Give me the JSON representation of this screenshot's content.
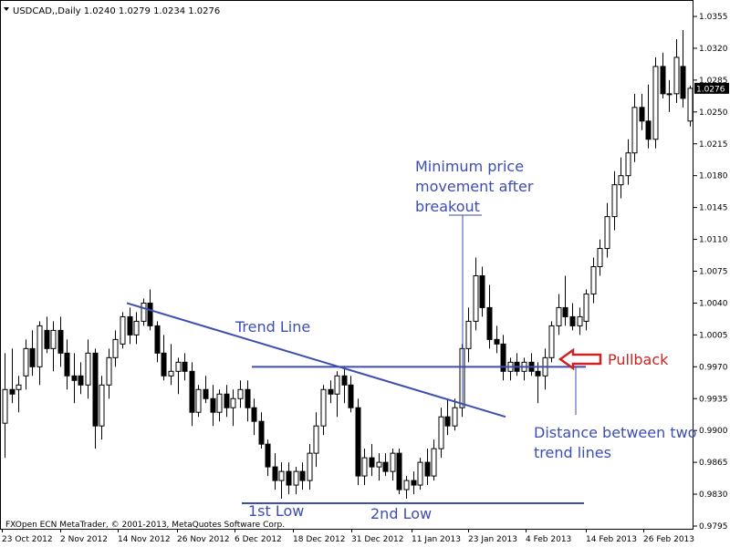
{
  "window": {
    "title": "USDCAD,,Daily  1.0240 1.0279 1.0234 1.0276",
    "copyright": "FXOpen ECN MetaTrader, © 2001-2013, MetaQuotes Software Corp."
  },
  "chart_data": {
    "type": "candlestick",
    "symbol": "USDCAD",
    "timeframe": "Daily",
    "ohlc_header": {
      "open": 1.024,
      "high": 1.0279,
      "low": 1.0234,
      "close": 1.0276
    },
    "current_price_label": "1.0276",
    "current_price": 1.0276,
    "ylim": [
      0.979,
      1.036
    ],
    "y_ticks": [
      "1.0355",
      "1.0320",
      "1.0285",
      "1.0250",
      "1.0215",
      "1.0180",
      "1.0145",
      "1.0110",
      "1.0075",
      "1.0040",
      "1.0005",
      "0.9970",
      "0.9935",
      "0.9900",
      "0.9865",
      "0.9830",
      "0.9795"
    ],
    "x_ticks": [
      "23 Oct 2012",
      "2 Nov 2012",
      "14 Nov 2012",
      "26 Nov 2012",
      "6 Dec 2012",
      "18 Dec 2012",
      "31 Dec 2012",
      "11 Jan 2013",
      "23 Jan 2013",
      "4 Feb 2013",
      "14 Feb 2013",
      "26 Feb 2013"
    ],
    "annotations": {
      "trend_line": "Trend Line",
      "min_move": [
        "Minimum price",
        "movement after",
        "breakout"
      ],
      "pullback": "Pullback",
      "distance": [
        "Distance between two",
        "trend lines"
      ],
      "first_low": "1st Low",
      "second_low": "2nd Low"
    },
    "levels": {
      "resistance": 0.997,
      "support": 0.982
    },
    "trend_line_points": [
      [
        0.004,
        16
      ],
      [
        0.9915,
        60
      ]
    ],
    "candles": [
      {
        "o": 0.9908,
        "h": 0.9985,
        "l": 0.987,
        "c": 0.9945
      },
      {
        "o": 0.9945,
        "h": 0.999,
        "l": 0.993,
        "c": 0.994
      },
      {
        "o": 0.9945,
        "h": 0.996,
        "l": 0.992,
        "c": 0.995
      },
      {
        "o": 0.996,
        "h": 1.0,
        "l": 0.9945,
        "c": 0.999
      },
      {
        "o": 0.999,
        "h": 1.001,
        "l": 0.996,
        "c": 0.997
      },
      {
        "o": 0.997,
        "h": 1.002,
        "l": 0.995,
        "c": 1.0015
      },
      {
        "o": 1.001,
        "h": 1.0025,
        "l": 0.9985,
        "c": 0.999
      },
      {
        "o": 0.999,
        "h": 1.002,
        "l": 0.9965,
        "c": 1.001
      },
      {
        "o": 1.001,
        "h": 1.0025,
        "l": 0.997,
        "c": 0.9985
      },
      {
        "o": 0.9985,
        "h": 1.0,
        "l": 0.9945,
        "c": 0.996
      },
      {
        "o": 0.996,
        "h": 0.9985,
        "l": 0.993,
        "c": 0.9955
      },
      {
        "o": 0.996,
        "h": 0.9975,
        "l": 0.994,
        "c": 0.995
      },
      {
        "o": 0.995,
        "h": 1.0,
        "l": 0.9935,
        "c": 0.9985
      },
      {
        "o": 0.9985,
        "h": 0.999,
        "l": 0.988,
        "c": 0.9905
      },
      {
        "o": 0.9905,
        "h": 0.996,
        "l": 0.989,
        "c": 0.995
      },
      {
        "o": 0.995,
        "h": 0.999,
        "l": 0.9935,
        "c": 0.998
      },
      {
        "o": 0.998,
        "h": 1.001,
        "l": 0.997,
        "c": 1.0
      },
      {
        "o": 0.9995,
        "h": 1.003,
        "l": 0.999,
        "c": 1.0025
      },
      {
        "o": 1.0025,
        "h": 1.0035,
        "l": 0.9995,
        "c": 1.0005
      },
      {
        "o": 1.0005,
        "h": 1.003,
        "l": 0.9995,
        "c": 1.002
      },
      {
        "o": 1.002,
        "h": 1.0045,
        "l": 1.0015,
        "c": 1.004
      },
      {
        "o": 1.004,
        "h": 1.0055,
        "l": 1.001,
        "c": 1.0015
      },
      {
        "o": 1.0015,
        "h": 1.002,
        "l": 0.9975,
        "c": 0.9985
      },
      {
        "o": 0.9985,
        "h": 1.0005,
        "l": 0.9955,
        "c": 0.996
      },
      {
        "o": 0.996,
        "h": 0.9995,
        "l": 0.995,
        "c": 0.9965
      },
      {
        "o": 0.9965,
        "h": 0.998,
        "l": 0.994,
        "c": 0.9975
      },
      {
        "o": 0.9975,
        "h": 0.9985,
        "l": 0.9955,
        "c": 0.9965
      },
      {
        "o": 0.9965,
        "h": 0.9975,
        "l": 0.9905,
        "c": 0.992
      },
      {
        "o": 0.992,
        "h": 0.995,
        "l": 0.9915,
        "c": 0.9945
      },
      {
        "o": 0.9945,
        "h": 0.996,
        "l": 0.993,
        "c": 0.9935
      },
      {
        "o": 0.9935,
        "h": 0.995,
        "l": 0.9905,
        "c": 0.992
      },
      {
        "o": 0.992,
        "h": 0.9945,
        "l": 0.991,
        "c": 0.994
      },
      {
        "o": 0.994,
        "h": 0.995,
        "l": 0.9915,
        "c": 0.9925
      },
      {
        "o": 0.9925,
        "h": 0.9945,
        "l": 0.9905,
        "c": 0.9935
      },
      {
        "o": 0.9935,
        "h": 0.9955,
        "l": 0.9925,
        "c": 0.9945
      },
      {
        "o": 0.9945,
        "h": 0.9955,
        "l": 0.991,
        "c": 0.9925
      },
      {
        "o": 0.9925,
        "h": 0.9935,
        "l": 0.9895,
        "c": 0.991
      },
      {
        "o": 0.991,
        "h": 0.992,
        "l": 0.988,
        "c": 0.9885
      },
      {
        "o": 0.9885,
        "h": 0.989,
        "l": 0.985,
        "c": 0.986
      },
      {
        "o": 0.986,
        "h": 0.9875,
        "l": 0.9835,
        "c": 0.9845
      },
      {
        "o": 0.9845,
        "h": 0.9865,
        "l": 0.9825,
        "c": 0.9855
      },
      {
        "o": 0.9855,
        "h": 0.9865,
        "l": 0.983,
        "c": 0.984
      },
      {
        "o": 0.984,
        "h": 0.986,
        "l": 0.983,
        "c": 0.9855
      },
      {
        "o": 0.9855,
        "h": 0.9865,
        "l": 0.9835,
        "c": 0.9845
      },
      {
        "o": 0.9845,
        "h": 0.9885,
        "l": 0.9835,
        "c": 0.9875
      },
      {
        "o": 0.9875,
        "h": 0.992,
        "l": 0.986,
        "c": 0.9905
      },
      {
        "o": 0.9905,
        "h": 0.995,
        "l": 0.9895,
        "c": 0.9945
      },
      {
        "o": 0.9945,
        "h": 0.9955,
        "l": 0.993,
        "c": 0.994
      },
      {
        "o": 0.994,
        "h": 0.9965,
        "l": 0.9915,
        "c": 0.996
      },
      {
        "o": 0.996,
        "h": 0.997,
        "l": 0.993,
        "c": 0.995
      },
      {
        "o": 0.995,
        "h": 0.996,
        "l": 0.992,
        "c": 0.9925
      },
      {
        "o": 0.9925,
        "h": 0.9935,
        "l": 0.984,
        "c": 0.985
      },
      {
        "o": 0.985,
        "h": 0.988,
        "l": 0.984,
        "c": 0.987
      },
      {
        "o": 0.987,
        "h": 0.9885,
        "l": 0.985,
        "c": 0.986
      },
      {
        "o": 0.986,
        "h": 0.9875,
        "l": 0.9845,
        "c": 0.9865
      },
      {
        "o": 0.9865,
        "h": 0.9875,
        "l": 0.985,
        "c": 0.9855
      },
      {
        "o": 0.9855,
        "h": 0.988,
        "l": 0.9845,
        "c": 0.9875
      },
      {
        "o": 0.9875,
        "h": 0.988,
        "l": 0.983,
        "c": 0.9835
      },
      {
        "o": 0.9835,
        "h": 0.985,
        "l": 0.9825,
        "c": 0.9845
      },
      {
        "o": 0.9845,
        "h": 0.9855,
        "l": 0.983,
        "c": 0.984
      },
      {
        "o": 0.984,
        "h": 0.987,
        "l": 0.9835,
        "c": 0.9865
      },
      {
        "o": 0.9865,
        "h": 0.988,
        "l": 0.984,
        "c": 0.985
      },
      {
        "o": 0.985,
        "h": 0.989,
        "l": 0.9845,
        "c": 0.988
      },
      {
        "o": 0.988,
        "h": 0.9925,
        "l": 0.987,
        "c": 0.9915
      },
      {
        "o": 0.9915,
        "h": 0.9935,
        "l": 0.9895,
        "c": 0.9905
      },
      {
        "o": 0.9905,
        "h": 0.9935,
        "l": 0.99,
        "c": 0.9925
      },
      {
        "o": 0.9925,
        "h": 0.9995,
        "l": 0.9915,
        "c": 0.999
      },
      {
        "o": 0.999,
        "h": 1.0035,
        "l": 0.9975,
        "c": 1.002
      },
      {
        "o": 1.002,
        "h": 1.009,
        "l": 1.001,
        "c": 1.007
      },
      {
        "o": 1.007,
        "h": 1.008,
        "l": 1.0025,
        "c": 1.0035
      },
      {
        "o": 1.0035,
        "h": 1.006,
        "l": 0.999,
        "c": 1.0
      },
      {
        "o": 1.0,
        "h": 1.0015,
        "l": 0.9985,
        "c": 0.9995
      },
      {
        "o": 0.9995,
        "h": 1.0005,
        "l": 0.9955,
        "c": 0.9965
      },
      {
        "o": 0.9965,
        "h": 0.998,
        "l": 0.9955,
        "c": 0.9975
      },
      {
        "o": 0.9975,
        "h": 0.9985,
        "l": 0.996,
        "c": 0.9965
      },
      {
        "o": 0.9965,
        "h": 0.998,
        "l": 0.9955,
        "c": 0.9975
      },
      {
        "o": 0.9975,
        "h": 0.9985,
        "l": 0.996,
        "c": 0.9965
      },
      {
        "o": 0.9965,
        "h": 0.9975,
        "l": 0.993,
        "c": 0.996
      },
      {
        "o": 0.996,
        "h": 0.999,
        "l": 0.9945,
        "c": 0.998
      },
      {
        "o": 0.998,
        "h": 1.002,
        "l": 0.9975,
        "c": 1.0015
      },
      {
        "o": 1.0015,
        "h": 1.005,
        "l": 1.0005,
        "c": 1.0035
      },
      {
        "o": 1.0035,
        "h": 1.007,
        "l": 1.0015,
        "c": 1.0025
      },
      {
        "o": 1.0025,
        "h": 1.004,
        "l": 1.001,
        "c": 1.0015
      },
      {
        "o": 1.0015,
        "h": 1.0035,
        "l": 1.0005,
        "c": 1.0025
      },
      {
        "o": 1.002,
        "h": 1.0055,
        "l": 1.001,
        "c": 1.005
      },
      {
        "o": 1.005,
        "h": 1.009,
        "l": 1.004,
        "c": 1.008
      },
      {
        "o": 1.008,
        "h": 1.011,
        "l": 1.007,
        "c": 1.01
      },
      {
        "o": 1.01,
        "h": 1.015,
        "l": 1.009,
        "c": 1.0135
      },
      {
        "o": 1.0135,
        "h": 1.0185,
        "l": 1.012,
        "c": 1.017
      },
      {
        "o": 1.017,
        "h": 1.02,
        "l": 1.0155,
        "c": 1.018
      },
      {
        "o": 1.018,
        "h": 1.022,
        "l": 1.017,
        "c": 1.0205
      },
      {
        "o": 1.0205,
        "h": 1.027,
        "l": 1.0195,
        "c": 1.0255
      },
      {
        "o": 1.0255,
        "h": 1.027,
        "l": 1.023,
        "c": 1.024
      },
      {
        "o": 1.024,
        "h": 1.028,
        "l": 1.021,
        "c": 1.022
      },
      {
        "o": 1.022,
        "h": 1.031,
        "l": 1.021,
        "c": 1.03
      },
      {
        "o": 1.03,
        "h": 1.0315,
        "l": 1.0265,
        "c": 1.027
      },
      {
        "o": 1.027,
        "h": 1.0285,
        "l": 1.025,
        "c": 1.027
      },
      {
        "o": 1.027,
        "h": 1.033,
        "l": 1.026,
        "c": 1.031
      },
      {
        "o": 1.03,
        "h": 1.034,
        "l": 1.0255,
        "c": 1.0265
      },
      {
        "o": 1.024,
        "h": 1.0279,
        "l": 1.0234,
        "c": 1.0276
      }
    ]
  }
}
